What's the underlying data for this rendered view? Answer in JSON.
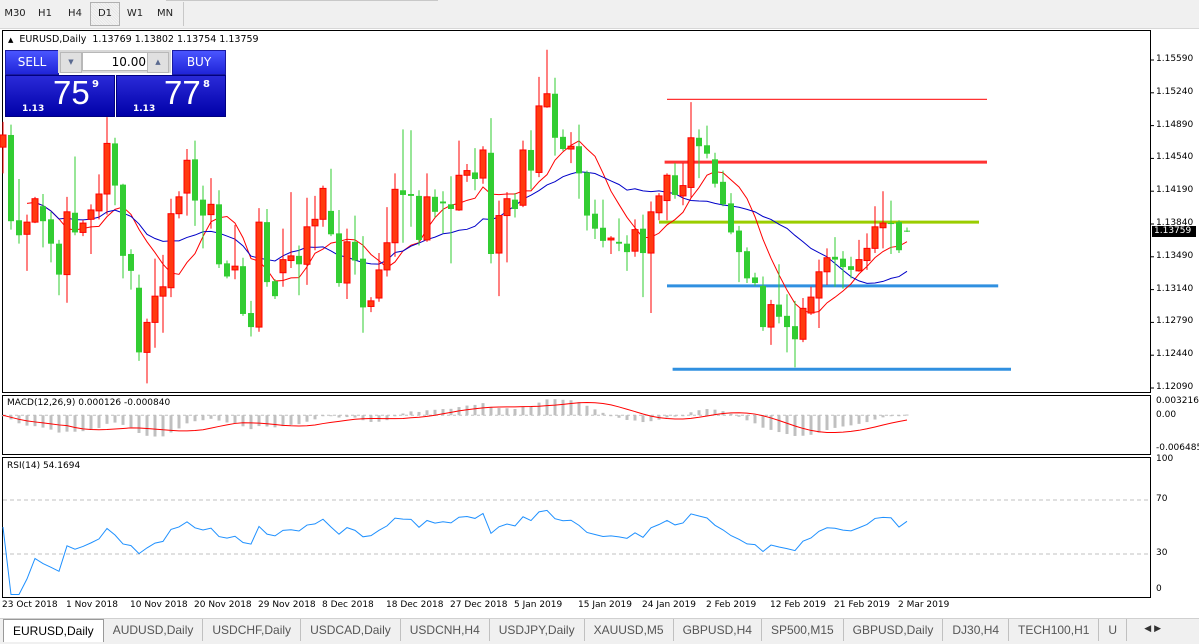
{
  "timeframes": {
    "items": [
      "M30",
      "H1",
      "H4",
      "D1",
      "W1",
      "MN"
    ],
    "active": "D1"
  },
  "chart": {
    "symbol_label": "EURUSD,Daily",
    "ohlc_label": "1.13769 1.13802 1.13754 1.13759",
    "current_price": "1.13759"
  },
  "one_click": {
    "sell_label": "SELL",
    "buy_label": "BUY",
    "lot_value": "10.00",
    "bid": {
      "big": "1.13",
      "pips": "75",
      "point": "9"
    },
    "ask": {
      "big": "1.13",
      "pips": "77",
      "point": "8"
    }
  },
  "colors": {
    "bull": "#ff0000",
    "bull_fill": "#ff3a10",
    "bear": "#32cd32",
    "ma_fast": "#ff0000",
    "ma_slow": "#0000c8",
    "macd_hist": "#c0c0c0",
    "macd_signal": "#ff0000",
    "rsi": "#1e90ff",
    "level_red": "#ff3333",
    "level_green": "#9acd00",
    "level_blue": "#3090e0"
  },
  "price_axis": [
    "1.15590",
    "1.15240",
    "1.14890",
    "1.14540",
    "1.14190",
    "1.13840",
    "1.13490",
    "1.13140",
    "1.12790",
    "1.12440",
    "1.12090"
  ],
  "macd": {
    "label": "MACD(12,26,9) 0.000126 -0.000840",
    "axis": [
      "0.003216",
      "0.00",
      "-0.006485"
    ],
    "max": 0.003216,
    "min": -0.006485
  },
  "rsi": {
    "label": "RSI(14) 54.1694",
    "axis": [
      "100",
      "70",
      "30",
      "0"
    ],
    "levels": [
      70,
      30
    ]
  },
  "date_axis": [
    "23 Oct 2018",
    "1 Nov 2018",
    "10 Nov 2018",
    "20 Nov 2018",
    "29 Nov 2018",
    "8 Dec 2018",
    "18 Dec 2018",
    "27 Dec 2018",
    "5 Jan 2019",
    "15 Jan 2019",
    "24 Jan 2019",
    "2 Feb 2019",
    "12 Feb 2019",
    "21 Feb 2019",
    "2 Mar 2019"
  ],
  "chart_data": {
    "type": "candlestick",
    "symbol": "EURUSD",
    "timeframe": "Daily",
    "ylim": [
      1.1209,
      1.1559
    ],
    "grid": false,
    "levels": [
      {
        "price": 1.1517,
        "color": "#ff3333",
        "style": "thin"
      },
      {
        "price": 1.145,
        "color": "#ff3333",
        "style": "thick"
      },
      {
        "price": 1.1386,
        "color": "#9acd00",
        "style": "thick"
      },
      {
        "price": 1.1318,
        "color": "#3090e0",
        "style": "thick"
      },
      {
        "price": 1.1229,
        "color": "#3090e0",
        "style": "thick"
      }
    ],
    "ohlc": [
      [
        1.1466,
        1.1493,
        1.1438,
        1.1479
      ],
      [
        1.1479,
        1.149,
        1.1378,
        1.1387
      ],
      [
        1.1388,
        1.1432,
        1.1363,
        1.1372
      ],
      [
        1.1373,
        1.1394,
        1.1334,
        1.1386
      ],
      [
        1.1386,
        1.1413,
        1.1385,
        1.1411
      ],
      [
        1.1403,
        1.1416,
        1.1359,
        1.1387
      ],
      [
        1.1389,
        1.1397,
        1.1343,
        1.1363
      ],
      [
        1.1363,
        1.1367,
        1.1308,
        1.133
      ],
      [
        1.133,
        1.1413,
        1.13,
        1.1397
      ],
      [
        1.1396,
        1.1456,
        1.1372,
        1.1375
      ],
      [
        1.1375,
        1.1388,
        1.1371,
        1.1385
      ],
      [
        1.1389,
        1.1405,
        1.1352,
        1.1399
      ],
      [
        1.1398,
        1.1437,
        1.1389,
        1.1416
      ],
      [
        1.1416,
        1.1498,
        1.1394,
        1.147
      ],
      [
        1.147,
        1.1476,
        1.1404,
        1.1425
      ],
      [
        1.1426,
        1.1427,
        1.1326,
        1.135
      ],
      [
        1.1352,
        1.1357,
        1.1314,
        1.1334
      ],
      [
        1.1316,
        1.133,
        1.1238,
        1.1247
      ],
      [
        1.1247,
        1.1283,
        1.1214,
        1.1279
      ],
      [
        1.1279,
        1.1347,
        1.1252,
        1.1307
      ],
      [
        1.1307,
        1.1351,
        1.1268,
        1.1317
      ],
      [
        1.1316,
        1.1411,
        1.1306,
        1.1395
      ],
      [
        1.1395,
        1.1419,
        1.139,
        1.1413
      ],
      [
        1.1417,
        1.1464,
        1.1393,
        1.1452
      ],
      [
        1.1453,
        1.1473,
        1.1382,
        1.1409
      ],
      [
        1.141,
        1.1425,
        1.1358,
        1.1393
      ],
      [
        1.1394,
        1.1433,
        1.1379,
        1.1405
      ],
      [
        1.1405,
        1.142,
        1.1337,
        1.1341
      ],
      [
        1.1342,
        1.1345,
        1.1326,
        1.1328
      ],
      [
        1.1335,
        1.1383,
        1.1325,
        1.1339
      ],
      [
        1.1339,
        1.1348,
        1.1286,
        1.1288
      ],
      [
        1.1289,
        1.1302,
        1.1264,
        1.1274
      ],
      [
        1.1274,
        1.1401,
        1.1269,
        1.1386
      ],
      [
        1.1386,
        1.14,
        1.1317,
        1.1322
      ],
      [
        1.1323,
        1.1325,
        1.1304,
        1.1307
      ],
      [
        1.1332,
        1.1379,
        1.1317,
        1.1346
      ],
      [
        1.1345,
        1.1418,
        1.1337,
        1.135
      ],
      [
        1.135,
        1.1361,
        1.1308,
        1.1341
      ],
      [
        1.1341,
        1.1412,
        1.1319,
        1.1381
      ],
      [
        1.1382,
        1.1414,
        1.1356,
        1.1389
      ],
      [
        1.1389,
        1.1425,
        1.1381,
        1.1422
      ],
      [
        1.1398,
        1.1443,
        1.1371,
        1.1373
      ],
      [
        1.1374,
        1.1399,
        1.1317,
        1.1321
      ],
      [
        1.1321,
        1.1379,
        1.1304,
        1.1365
      ],
      [
        1.1365,
        1.1393,
        1.133,
        1.1345
      ],
      [
        1.1347,
        1.1371,
        1.1268,
        1.1295
      ],
      [
        1.1296,
        1.1306,
        1.129,
        1.1302
      ],
      [
        1.1305,
        1.1353,
        1.1301,
        1.1335
      ],
      [
        1.1335,
        1.1402,
        1.1328,
        1.1364
      ],
      [
        1.1364,
        1.1438,
        1.1349,
        1.1421
      ],
      [
        1.142,
        1.1485,
        1.1364,
        1.1415
      ],
      [
        1.1416,
        1.1484,
        1.1381,
        1.1414
      ],
      [
        1.1414,
        1.142,
        1.1361,
        1.1367
      ],
      [
        1.1367,
        1.1438,
        1.1365,
        1.1413
      ],
      [
        1.1413,
        1.1421,
        1.1391,
        1.1397
      ],
      [
        1.1408,
        1.1419,
        1.1374,
        1.1406
      ],
      [
        1.1405,
        1.1435,
        1.1342,
        1.14
      ],
      [
        1.1399,
        1.1473,
        1.1398,
        1.1436
      ],
      [
        1.1436,
        1.1448,
        1.1429,
        1.1441
      ],
      [
        1.1439,
        1.1465,
        1.142,
        1.1432
      ],
      [
        1.1433,
        1.1467,
        1.1427,
        1.1463
      ],
      [
        1.146,
        1.1497,
        1.1342,
        1.1352
      ],
      [
        1.1353,
        1.1409,
        1.1307,
        1.1393
      ],
      [
        1.1393,
        1.1418,
        1.1343,
        1.1411
      ],
      [
        1.141,
        1.1417,
        1.1391,
        1.14
      ],
      [
        1.1404,
        1.1473,
        1.1402,
        1.1463
      ],
      [
        1.1463,
        1.1484,
        1.1421,
        1.1441
      ],
      [
        1.1439,
        1.1541,
        1.1434,
        1.151
      ],
      [
        1.1509,
        1.157,
        1.1508,
        1.1523
      ],
      [
        1.1523,
        1.154,
        1.1457,
        1.1476
      ],
      [
        1.1477,
        1.1485,
        1.1462,
        1.1464
      ],
      [
        1.1464,
        1.1482,
        1.1449,
        1.1467
      ],
      [
        1.1467,
        1.149,
        1.1411,
        1.1438
      ],
      [
        1.1439,
        1.1441,
        1.1377,
        1.1393
      ],
      [
        1.1395,
        1.141,
        1.1368,
        1.1379
      ],
      [
        1.138,
        1.141,
        1.1359,
        1.1366
      ],
      [
        1.1367,
        1.1371,
        1.1352,
        1.1369
      ],
      [
        1.1365,
        1.139,
        1.1355,
        1.1363
      ],
      [
        1.1363,
        1.1372,
        1.1334,
        1.1354
      ],
      [
        1.1355,
        1.1389,
        1.1349,
        1.1378
      ],
      [
        1.1379,
        1.1394,
        1.1306,
        1.1353
      ],
      [
        1.1353,
        1.1408,
        1.1289,
        1.1397
      ],
      [
        1.1396,
        1.1417,
        1.1388,
        1.1414
      ],
      [
        1.1409,
        1.1438,
        1.1388,
        1.1436
      ],
      [
        1.1436,
        1.1449,
        1.1411,
        1.1415
      ],
      [
        1.1414,
        1.1449,
        1.1404,
        1.1425
      ],
      [
        1.1423,
        1.1514,
        1.1412,
        1.1476
      ],
      [
        1.1476,
        1.1485,
        1.1433,
        1.1467
      ],
      [
        1.1468,
        1.1489,
        1.1454,
        1.1459
      ],
      [
        1.1453,
        1.146,
        1.1423,
        1.1427
      ],
      [
        1.1429,
        1.1441,
        1.1403,
        1.1405
      ],
      [
        1.1406,
        1.1417,
        1.1373,
        1.1375
      ],
      [
        1.1377,
        1.1382,
        1.1322,
        1.1354
      ],
      [
        1.1355,
        1.1359,
        1.1321,
        1.1326
      ],
      [
        1.1327,
        1.1332,
        1.1318,
        1.1321
      ],
      [
        1.1318,
        1.1328,
        1.127,
        1.1274
      ],
      [
        1.1274,
        1.1303,
        1.1255,
        1.1298
      ],
      [
        1.1298,
        1.1341,
        1.1278,
        1.1285
      ],
      [
        1.1286,
        1.1309,
        1.1247,
        1.1274
      ],
      [
        1.1275,
        1.1302,
        1.1231,
        1.1261
      ],
      [
        1.1261,
        1.1305,
        1.1258,
        1.1294
      ],
      [
        1.1289,
        1.1317,
        1.1287,
        1.1306
      ],
      [
        1.1305,
        1.1346,
        1.1273,
        1.1333
      ],
      [
        1.1333,
        1.1358,
        1.1319,
        1.1348
      ],
      [
        1.1349,
        1.137,
        1.1317,
        1.1346
      ],
      [
        1.1347,
        1.1355,
        1.1315,
        1.1338
      ],
      [
        1.1339,
        1.1349,
        1.1326,
        1.1335
      ],
      [
        1.1334,
        1.1367,
        1.1333,
        1.1346
      ],
      [
        1.1345,
        1.1374,
        1.1335,
        1.1358
      ],
      [
        1.1358,
        1.1403,
        1.1353,
        1.1381
      ],
      [
        1.138,
        1.1419,
        1.1358,
        1.1385
      ],
      [
        1.1385,
        1.1409,
        1.1352,
        1.1384
      ],
      [
        1.1386,
        1.1388,
        1.1353,
        1.1356
      ],
      [
        1.13769,
        1.13802,
        1.13754,
        1.13759
      ]
    ]
  },
  "tabs": {
    "items": [
      "EURUSD,Daily",
      "AUDUSD,Daily",
      "USDCHF,Daily",
      "USDCAD,Daily",
      "USDCNH,H4",
      "USDJPY,Daily",
      "XAUUSD,M5",
      "GBPUSD,H4",
      "SP500,M15",
      "GBPUSD,Daily",
      "DJ30,H4",
      "TECH100,H1",
      "U"
    ],
    "active": 0
  }
}
